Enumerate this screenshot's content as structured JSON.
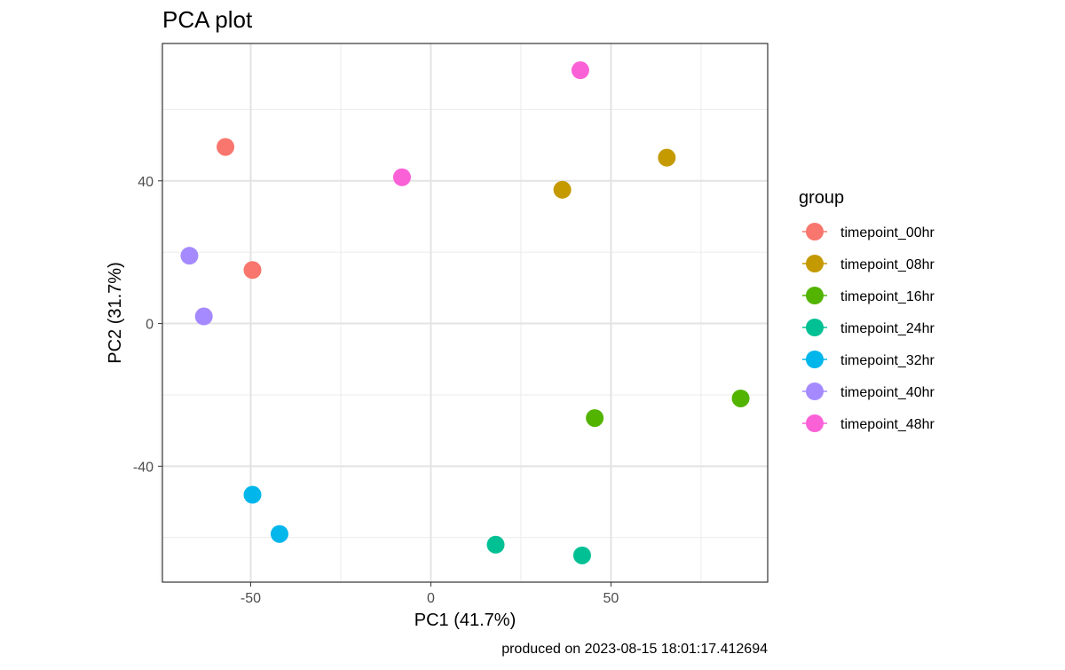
{
  "chart_data": {
    "type": "scatter",
    "title": "PCA plot",
    "xlabel": "PC1 (41.7%)",
    "ylabel": "PC2 (31.7%)",
    "caption": "produced on 2023-08-15 18:01:17.412694",
    "xlim": [
      -74.5,
      93.5
    ],
    "ylim": [
      -72.5,
      78.5
    ],
    "x_ticks": [
      -50,
      0,
      50
    ],
    "y_ticks": [
      -40,
      0,
      40
    ],
    "x_minor": [
      -75,
      -25,
      25,
      75
    ],
    "y_minor": [
      -60,
      -20,
      20,
      60
    ],
    "grid": true,
    "legend_title": "group",
    "legend_position": "right",
    "series": [
      {
        "name": "timepoint_00hr",
        "color": "#F8766D",
        "points": [
          [
            -57,
            49.5
          ],
          [
            -49.5,
            15
          ]
        ]
      },
      {
        "name": "timepoint_08hr",
        "color": "#C49A00",
        "points": [
          [
            36.5,
            37.5
          ],
          [
            65.5,
            46.5
          ]
        ]
      },
      {
        "name": "timepoint_16hr",
        "color": "#53B400",
        "points": [
          [
            45.5,
            -26.5
          ],
          [
            86,
            -21
          ]
        ]
      },
      {
        "name": "timepoint_24hr",
        "color": "#00C094",
        "points": [
          [
            18,
            -62
          ],
          [
            42,
            -65
          ]
        ]
      },
      {
        "name": "timepoint_32hr",
        "color": "#00B6EB",
        "points": [
          [
            -49.5,
            -48
          ],
          [
            -42,
            -59
          ]
        ]
      },
      {
        "name": "timepoint_40hr",
        "color": "#A58AFF",
        "points": [
          [
            -67,
            19
          ],
          [
            -63,
            2
          ]
        ]
      },
      {
        "name": "timepoint_48hr",
        "color": "#FB61D7",
        "points": [
          [
            -8,
            41
          ],
          [
            41.5,
            71
          ]
        ]
      }
    ]
  }
}
